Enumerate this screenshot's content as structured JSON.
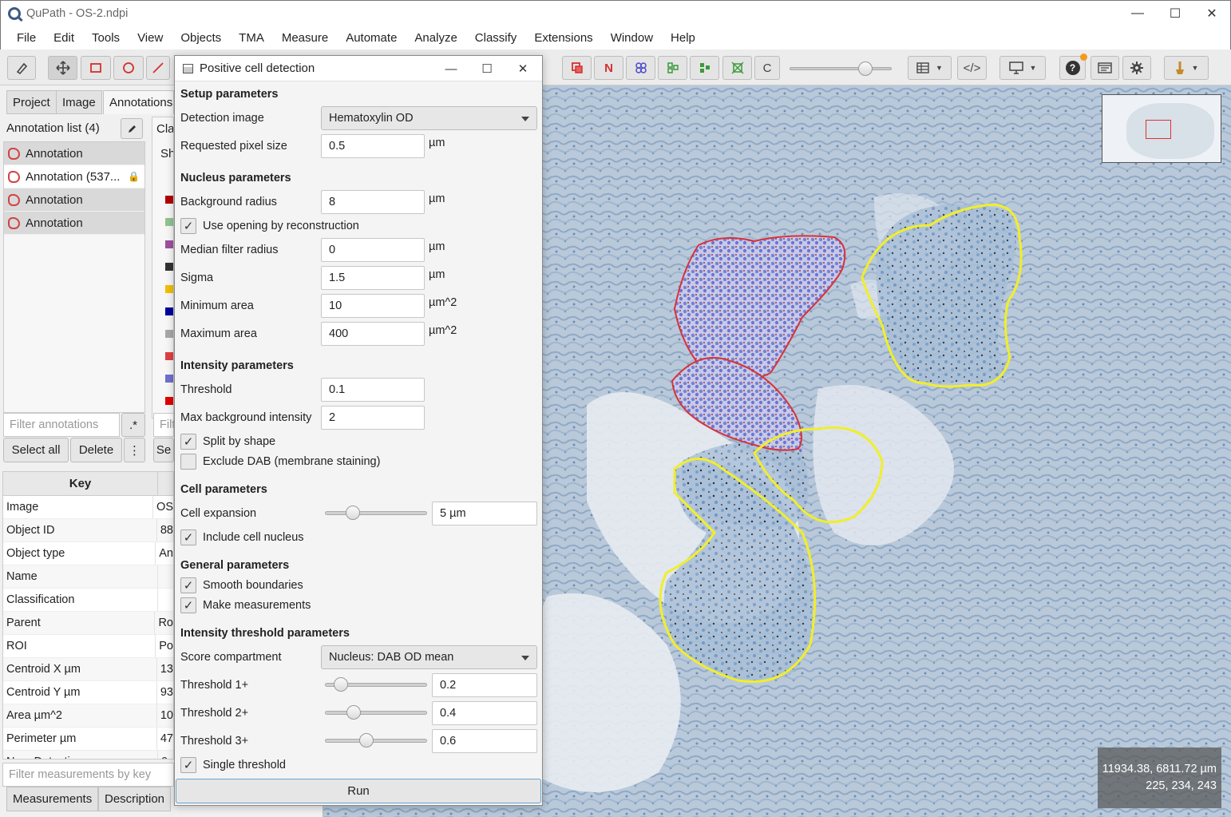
{
  "window": {
    "title": "QuPath - OS-2.ndpi",
    "minimize": "—",
    "maximize": "☐",
    "close": "✕"
  },
  "menu": [
    "File",
    "Edit",
    "Tools",
    "View",
    "Objects",
    "TMA",
    "Measure",
    "Automate",
    "Analyze",
    "Classify",
    "Extensions",
    "Window",
    "Help"
  ],
  "toolbar": {
    "c_label": "C",
    "n_label": "N",
    "code_label": "</>",
    "help_label": "?"
  },
  "left_tabs": [
    "Project",
    "Image",
    "Annotations"
  ],
  "annotations": {
    "header": "Annotation list (4)",
    "items": [
      {
        "label": "Annotation"
      },
      {
        "label": "Annotation (537...",
        "locked": true
      },
      {
        "label": "Annotation"
      },
      {
        "label": "Annotation"
      }
    ],
    "class_header": "Cla",
    "show_label": "Sh",
    "filter_placeholder": "Filter annotations",
    "regex_label": ".*",
    "filter_classes_placeholder": "Filt",
    "select_all": "Select all",
    "delete": "Delete",
    "more": "⋮",
    "set_label": "Se",
    "class_colors": [
      "#b30000",
      "#8fc48f",
      "#a050a0",
      "#333333",
      "#f0c000",
      "#00009e",
      "#a8a8a8",
      "#e04040",
      "#7070d0",
      "#e00000"
    ]
  },
  "measurements": {
    "key_header": "Key",
    "rows": [
      {
        "k": "Image",
        "v": "OS"
      },
      {
        "k": "Object ID",
        "v": "88"
      },
      {
        "k": "Object type",
        "v": "An"
      },
      {
        "k": "Name",
        "v": ""
      },
      {
        "k": "Classification",
        "v": ""
      },
      {
        "k": "Parent",
        "v": "Ro"
      },
      {
        "k": "ROI",
        "v": "Po"
      },
      {
        "k": "Centroid X µm",
        "v": "13"
      },
      {
        "k": "Centroid Y µm",
        "v": "93"
      },
      {
        "k": "Area µm^2",
        "v": "10"
      },
      {
        "k": "Perimeter µm",
        "v": "47"
      },
      {
        "k": "Num Detections",
        "v": "0"
      }
    ],
    "filter_placeholder": "Filter measurements by key",
    "tab_measurements": "Measurements",
    "tab_description": "Description"
  },
  "dialog": {
    "title": "Positive cell detection",
    "setup": {
      "heading": "Setup parameters",
      "detection_image_label": "Detection image",
      "detection_image_value": "Hematoxylin OD",
      "pixel_size_label": "Requested pixel size",
      "pixel_size_value": "0.5",
      "unit_um": "µm"
    },
    "nucleus": {
      "heading": "Nucleus parameters",
      "bg_radius_label": "Background radius",
      "bg_radius_value": "8",
      "opening_label": "Use opening by reconstruction",
      "median_label": "Median filter radius",
      "median_value": "0",
      "sigma_label": "Sigma",
      "sigma_value": "1.5",
      "min_area_label": "Minimum area",
      "min_area_value": "10",
      "max_area_label": "Maximum area",
      "max_area_value": "400",
      "unit_um": "µm",
      "unit_um2": "µm^2"
    },
    "intensity": {
      "heading": "Intensity parameters",
      "threshold_label": "Threshold",
      "threshold_value": "0.1",
      "max_bg_label": "Max background intensity",
      "max_bg_value": "2",
      "split_label": "Split by shape",
      "exclude_dab_label": "Exclude DAB (membrane staining)"
    },
    "cell": {
      "heading": "Cell parameters",
      "expansion_label": "Cell expansion",
      "expansion_value": "5 µm",
      "expansion_level": 0.23,
      "include_nucleus_label": "Include cell nucleus"
    },
    "general": {
      "heading": "General parameters",
      "smooth_label": "Smooth boundaries",
      "measure_label": "Make measurements"
    },
    "threshold": {
      "heading": "Intensity threshold parameters",
      "compartment_label": "Score compartment",
      "compartment_value": "Nucleus: DAB OD mean",
      "t1_label": "Threshold 1+",
      "t1_value": "0.2",
      "t2_label": "Threshold 2+",
      "t2_value": "0.4",
      "t3_label": "Threshold 3+",
      "t3_value": "0.6",
      "single_label": "Single threshold"
    },
    "check_mark": "✓",
    "run": "Run"
  },
  "viewer": {
    "coords_um": "11934.38, 6811.72 µm",
    "coords_rgb": "225, 234, 243"
  }
}
